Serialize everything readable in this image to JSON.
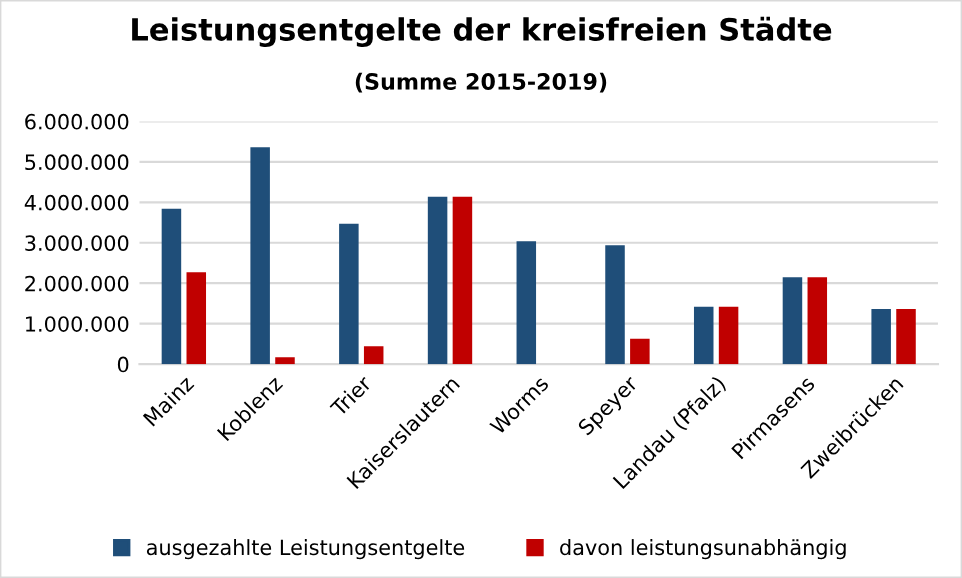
{
  "chart_data": {
    "type": "bar",
    "title": "Leistungsentgelte der kreisfreien Städte",
    "subtitle": "(Summe 2015-2019)",
    "categories": [
      "Mainz",
      "Koblenz",
      "Trier",
      "Kaiserslautern",
      "Worms",
      "Speyer",
      "Landau (Pfalz)",
      "Pirmasens",
      "Zweibrücken"
    ],
    "series": [
      {
        "name": "ausgezahlte Leistungsentgelte",
        "color": "#1f4e79",
        "values": [
          3840000,
          5360000,
          3470000,
          4140000,
          3040000,
          2940000,
          1420000,
          2150000,
          1360000
        ]
      },
      {
        "name": "davon leistungsunabhängig",
        "color": "#c00000",
        "values": [
          2270000,
          170000,
          440000,
          4140000,
          null,
          630000,
          1420000,
          2150000,
          1360000
        ]
      }
    ],
    "ylim": [
      0,
      6000000
    ],
    "yticks": [
      {
        "value": 0,
        "label": "0"
      },
      {
        "value": 1000000,
        "label": "1.000.000"
      },
      {
        "value": 2000000,
        "label": "2.000.000"
      },
      {
        "value": 3000000,
        "label": "3.000.000"
      },
      {
        "value": 4000000,
        "label": "4.000.000"
      },
      {
        "value": 5000000,
        "label": "5.000.000"
      },
      {
        "value": 6000000,
        "label": "6.000.000"
      }
    ],
    "grid": "y",
    "legend": "bottom"
  }
}
